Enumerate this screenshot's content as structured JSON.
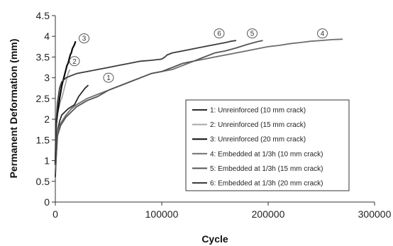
{
  "chart_data": {
    "type": "line",
    "xlabel": "Cycle",
    "ylabel": "Permanent Deformation (mm)",
    "xlim": [
      0,
      300000
    ],
    "ylim": [
      0,
      4.5
    ],
    "xticks": [
      0,
      100000,
      200000,
      300000
    ],
    "yticks": [
      0,
      0.5,
      1,
      1.5,
      2,
      2.5,
      3,
      3.5,
      4,
      4.5
    ],
    "grid": false,
    "legend_placement": "lower-right",
    "series": [
      {
        "name": "1: Unreinforced (10 mm crack)",
        "marker_label": "1",
        "color": "#2a2a2a",
        "x": [
          0,
          1000,
          2000,
          4000,
          6000,
          8000,
          10000,
          12000,
          15000,
          18000,
          20000,
          22000,
          25000,
          28000,
          31000
        ],
        "y": [
          0.6,
          1.3,
          1.7,
          1.95,
          2.1,
          2.15,
          2.2,
          2.25,
          2.3,
          2.35,
          2.45,
          2.55,
          2.65,
          2.75,
          2.82
        ]
      },
      {
        "name": "2: Unreinforced (15 mm crack)",
        "marker_label": "2",
        "color": "#a8a8a8",
        "x": [
          0,
          500,
          1000,
          2000,
          3000,
          4000,
          5000,
          6000,
          7000,
          8000,
          9000,
          10000,
          11000,
          12000,
          13500
        ],
        "y": [
          1.0,
          1.6,
          1.9,
          2.1,
          2.25,
          2.35,
          2.45,
          2.5,
          2.6,
          2.7,
          2.8,
          2.9,
          3.0,
          3.1,
          3.2
        ]
      },
      {
        "name": "3: Unreinforced (20 mm crack)",
        "marker_label": "3",
        "color": "#0a0a0a",
        "x": [
          0,
          500,
          1000,
          2000,
          3000,
          4000,
          5000,
          6000,
          7000,
          8000,
          9000,
          10000,
          11000,
          12000,
          13000,
          14000,
          15000,
          16000,
          17000,
          18000,
          19000
        ],
        "y": [
          0.9,
          1.6,
          1.9,
          2.15,
          2.3,
          2.5,
          2.65,
          2.8,
          2.9,
          3.0,
          3.1,
          3.2,
          3.3,
          3.35,
          3.45,
          3.55,
          3.6,
          3.7,
          3.75,
          3.8,
          3.88
        ]
      },
      {
        "name": "4: Embedded at 1/3h (10 mm crack)",
        "marker_label": "4",
        "color": "#6e6e6e",
        "x": [
          0,
          2000,
          5000,
          10000,
          15000,
          20000,
          30000,
          40000,
          50000,
          60000,
          70000,
          80000,
          90000,
          100000,
          110000,
          120000,
          130000,
          140000,
          150000,
          160000,
          170000,
          180000,
          190000,
          200000,
          210000,
          220000,
          230000,
          240000,
          250000,
          260000,
          270000
        ],
        "y": [
          0.7,
          1.7,
          1.9,
          2.1,
          2.25,
          2.35,
          2.5,
          2.6,
          2.7,
          2.8,
          2.9,
          3.0,
          3.1,
          3.15,
          3.2,
          3.3,
          3.4,
          3.45,
          3.5,
          3.55,
          3.6,
          3.65,
          3.7,
          3.75,
          3.78,
          3.82,
          3.85,
          3.88,
          3.9,
          3.92,
          3.93
        ]
      },
      {
        "name": "5: Embedded at 1/3h (15 mm crack)",
        "marker_label": "5",
        "color": "#555555",
        "x": [
          0,
          2000,
          5000,
          10000,
          20000,
          30000,
          40000,
          50000,
          60000,
          70000,
          80000,
          90000,
          100000,
          110000,
          120000,
          130000,
          140000,
          150000,
          160000,
          170000,
          180000,
          190000,
          195000
        ],
        "y": [
          0.7,
          1.6,
          1.85,
          2.05,
          2.3,
          2.45,
          2.55,
          2.7,
          2.8,
          2.9,
          3.0,
          3.1,
          3.15,
          3.25,
          3.35,
          3.4,
          3.5,
          3.6,
          3.65,
          3.72,
          3.8,
          3.87,
          3.9
        ]
      },
      {
        "name": "6: Embedded at 1/3h (20 mm crack)",
        "marker_label": "6",
        "color": "#3c3c3c",
        "x": [
          0,
          1000,
          2000,
          4000,
          6000,
          10000,
          15000,
          20000,
          30000,
          40000,
          50000,
          60000,
          70000,
          80000,
          90000,
          100000,
          103000,
          105000,
          110000,
          120000,
          130000,
          140000,
          150000,
          160000,
          165000,
          170000
        ],
        "y": [
          1.0,
          2.0,
          2.4,
          2.75,
          2.9,
          3.0,
          3.05,
          3.1,
          3.15,
          3.2,
          3.25,
          3.3,
          3.35,
          3.4,
          3.42,
          3.45,
          3.5,
          3.55,
          3.6,
          3.65,
          3.7,
          3.75,
          3.8,
          3.85,
          3.88,
          3.9
        ]
      }
    ],
    "markers": [
      {
        "label": "1",
        "x": 50000,
        "y": 3.0
      },
      {
        "label": "2",
        "x": 18000,
        "y": 3.4
      },
      {
        "label": "3",
        "x": 27000,
        "y": 3.95
      },
      {
        "label": "4",
        "x": 251000,
        "y": 4.07
      },
      {
        "label": "5",
        "x": 185000,
        "y": 4.07
      },
      {
        "label": "6",
        "x": 154000,
        "y": 4.07
      }
    ]
  }
}
